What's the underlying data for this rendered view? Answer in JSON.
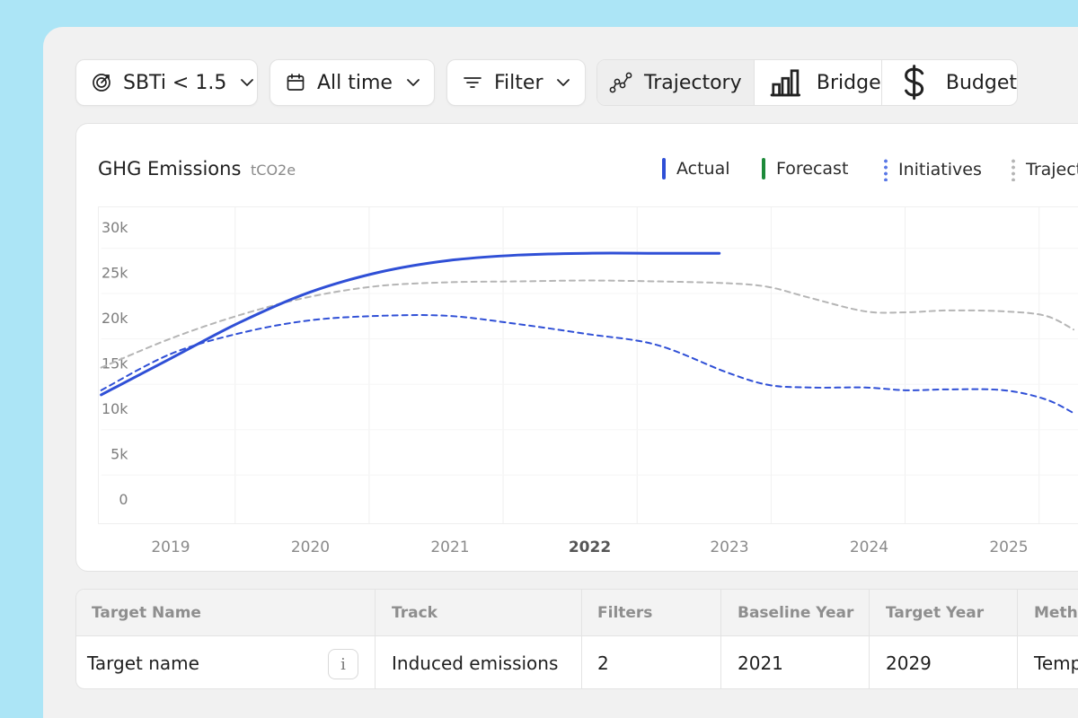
{
  "toolbar": {
    "target_select": {
      "label": "SBTi < 1.5",
      "icon": "target-icon"
    },
    "time_select": {
      "label": "All time",
      "icon": "calendar-icon"
    },
    "filter": {
      "label": "Filter",
      "icon": "filter-icon"
    },
    "views": [
      {
        "label": "Trajectory",
        "icon": "trajectory-icon",
        "active": true
      },
      {
        "label": "Bridge",
        "icon": "bar-chart-icon",
        "active": false
      },
      {
        "label": "Budget",
        "icon": "dollar-icon",
        "active": false
      }
    ]
  },
  "chart": {
    "title": "GHG Emissions",
    "unit": "tCO2e",
    "legend": [
      {
        "label": "Actual",
        "color": "#2f4fd6",
        "style": "solid"
      },
      {
        "label": "Forecast",
        "color": "#1d8a3a",
        "style": "solid"
      },
      {
        "label": "Initiatives",
        "color": "#5a78e6",
        "style": "dotted"
      },
      {
        "label": "Traject",
        "color": "#b5b5b5",
        "style": "dotted"
      }
    ]
  },
  "chart_data": {
    "type": "line",
    "y_ticks": [
      "30k",
      "25k",
      "20k",
      "15k",
      "10k",
      "5k",
      "0"
    ],
    "x_ticks": [
      "2019",
      "2020",
      "2021",
      "2022",
      "2023",
      "2024",
      "2025"
    ],
    "highlighted_x": "2022",
    "ylim": [
      0,
      30000
    ],
    "x_range": [
      2018.5,
      2025.5
    ],
    "grid": true,
    "legend_position": "top-right",
    "series": [
      {
        "name": "Actual",
        "color": "#2f4fd6",
        "style": "solid",
        "x": [
          2018.5,
          2019.0,
          2019.5,
          2020.0,
          2020.5,
          2021.0,
          2021.5,
          2022.0,
          2022.5,
          2022.95
        ],
        "y": [
          11500,
          15500,
          19500,
          22800,
          25000,
          26300,
          26900,
          27100,
          27100,
          27100
        ]
      },
      {
        "name": "Initiatives",
        "color": "#2f4fd6",
        "style": "dashed",
        "x": [
          2018.5,
          2019.0,
          2019.5,
          2020.0,
          2020.5,
          2021.0,
          2021.5,
          2022.0,
          2022.5,
          2023.0,
          2023.3,
          2023.6,
          2024.0,
          2024.3,
          2024.6,
          2025.0,
          2025.3,
          2025.5
        ],
        "y": [
          12000,
          16000,
          18300,
          19700,
          20200,
          20200,
          19300,
          18200,
          17000,
          14000,
          12600,
          12300,
          12300,
          12000,
          12100,
          12000,
          11000,
          9500
        ]
      },
      {
        "name": "Trajectory",
        "color": "#b5b5b5",
        "style": "dashed",
        "x": [
          2018.5,
          2019.0,
          2019.5,
          2020.0,
          2020.5,
          2021.0,
          2021.5,
          2022.0,
          2022.5,
          2023.0,
          2023.3,
          2023.6,
          2024.0,
          2024.3,
          2024.6,
          2025.0,
          2025.3,
          2025.5
        ],
        "y": [
          14500,
          17700,
          20300,
          22300,
          23500,
          23900,
          24000,
          24100,
          24000,
          23800,
          23400,
          22200,
          20700,
          20600,
          20800,
          20700,
          20200,
          18700
        ]
      }
    ]
  },
  "table": {
    "headers": [
      "Target Name",
      "Track",
      "Filters",
      "Baseline Year",
      "Target Year",
      "Metho"
    ],
    "row": [
      "Target name",
      "Induced emissions",
      "2",
      "2021",
      "2029",
      "Temp"
    ],
    "info_glyph": "i"
  }
}
